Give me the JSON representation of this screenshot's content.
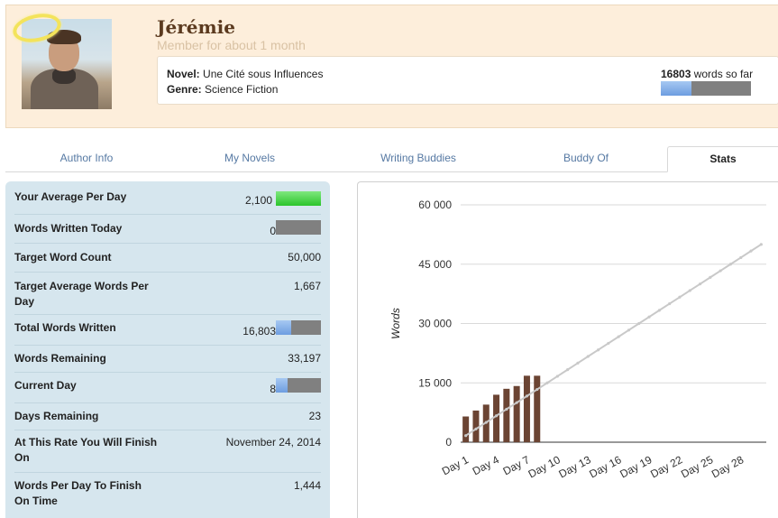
{
  "profile": {
    "name": "Jérémie",
    "member_since": "Member for about 1 month",
    "novel_label": "Novel:",
    "novel_title": "Une Cité sous Influences",
    "genre_label": "Genre:",
    "genre": "Science Fiction",
    "word_count": "16803",
    "word_count_suffix": " words so far",
    "progress_fraction": 0.336
  },
  "tabs": [
    {
      "label": "Author Info",
      "active": false
    },
    {
      "label": "My Novels",
      "active": false
    },
    {
      "label": "Writing Buddies",
      "active": false
    },
    {
      "label": "Buddy Of",
      "active": false
    },
    {
      "label": "Stats",
      "active": true
    }
  ],
  "stats": [
    {
      "label": "Your Average Per Day",
      "value": "2,100",
      "bar": {
        "fraction": 1.0,
        "color": "green"
      }
    },
    {
      "label": "Words Written Today",
      "value": "0",
      "bar": {
        "fraction": 0.0,
        "color": "blue"
      }
    },
    {
      "label": "Target Word Count",
      "value": "50,000"
    },
    {
      "label": "Target Average Words Per Day",
      "value": "1,667"
    },
    {
      "label": "Total Words Written",
      "value": "16,803",
      "bar": {
        "fraction": 0.336,
        "color": "blue"
      }
    },
    {
      "label": "Words Remaining",
      "value": "33,197"
    },
    {
      "label": "Current Day",
      "value": "8",
      "bar": {
        "fraction": 0.267,
        "color": "blue"
      }
    },
    {
      "label": "Days Remaining",
      "value": "23"
    },
    {
      "label": "At This Rate You Will Finish On",
      "value": "November 24, 2014"
    },
    {
      "label": "Words Per Day To Finish On Time",
      "value": "1,444"
    }
  ],
  "chart_data": {
    "type": "bar",
    "ylabel": "Words",
    "ylim": [
      0,
      60000
    ],
    "yticks": [
      0,
      15000,
      30000,
      45000,
      60000
    ],
    "ytick_labels": [
      "0",
      "15 000",
      "30 000",
      "45 000",
      "60 000"
    ],
    "xtick_labels": [
      "Day 1",
      "Day 4",
      "Day 7",
      "Day 10",
      "Day 13",
      "Day 16",
      "Day 19",
      "Day 22",
      "Day 25",
      "Day 28"
    ],
    "num_days": 30,
    "bars": [
      {
        "day": 1,
        "value": 6500
      },
      {
        "day": 2,
        "value": 8000
      },
      {
        "day": 3,
        "value": 9500
      },
      {
        "day": 4,
        "value": 12000
      },
      {
        "day": 5,
        "value": 13500
      },
      {
        "day": 6,
        "value": 14200
      },
      {
        "day": 7,
        "value": 16803
      },
      {
        "day": 8,
        "value": 16803
      }
    ],
    "target_line": {
      "start": 1667,
      "end": 50000
    },
    "grid": true,
    "colors": {
      "bar": "#6b4433",
      "target": "#c9c9c9",
      "grid": "#d9d9d9"
    }
  }
}
